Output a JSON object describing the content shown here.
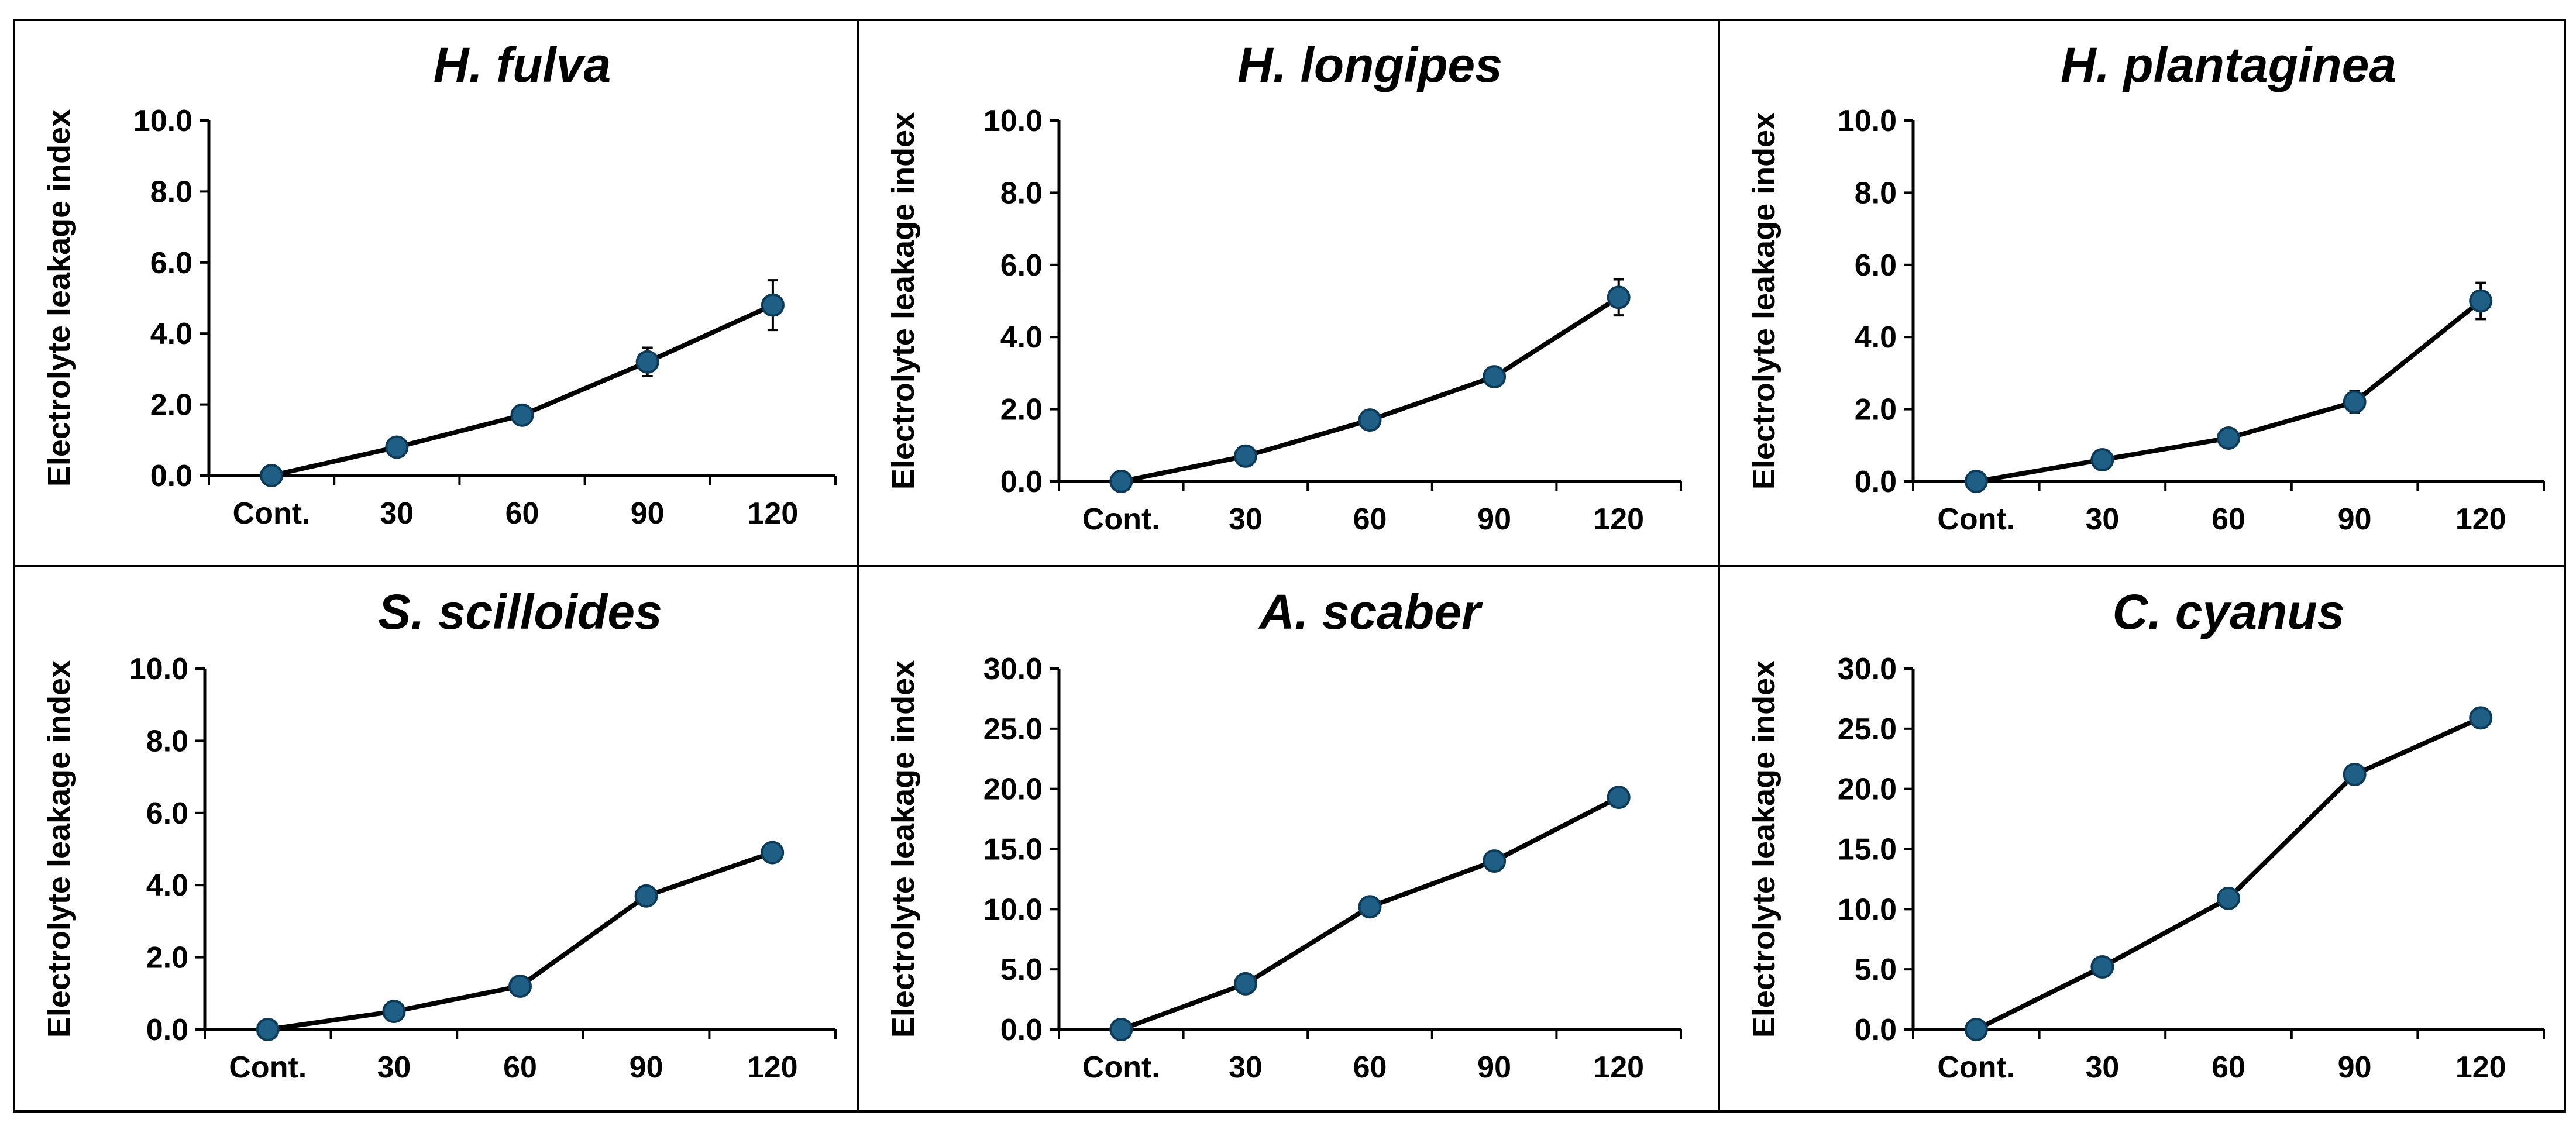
{
  "colors": {
    "marker": "#1f5f85",
    "marker_edge": "#0d3a56",
    "line": "#000000"
  },
  "chart_data": [
    {
      "type": "line",
      "title": "H. fulva",
      "ylabel": "Electrolyte leakage index",
      "xlabel": "",
      "categories": [
        "Cont.",
        "30",
        "60",
        "90",
        "120"
      ],
      "values": [
        0.0,
        0.8,
        1.7,
        3.2,
        4.8
      ],
      "errors": [
        0,
        0,
        0,
        0.4,
        0.7
      ],
      "ylim": [
        0,
        10
      ],
      "yticks": [
        "0.0",
        "2.0",
        "4.0",
        "6.0",
        "8.0",
        "10.0"
      ]
    },
    {
      "type": "line",
      "title": "H. longipes",
      "ylabel": "Electrolyte leakage index",
      "xlabel": "",
      "categories": [
        "Cont.",
        "30",
        "60",
        "90",
        "120"
      ],
      "values": [
        0.0,
        0.7,
        1.7,
        2.9,
        5.1
      ],
      "errors": [
        0,
        0,
        0,
        0,
        0.5
      ],
      "ylim": [
        0,
        10
      ],
      "yticks": [
        "0.0",
        "2.0",
        "4.0",
        "6.0",
        "8.0",
        "10.0"
      ]
    },
    {
      "type": "line",
      "title": "H. plantaginea",
      "ylabel": "Electrolyte leakage index",
      "xlabel": "",
      "categories": [
        "Cont.",
        "30",
        "60",
        "90",
        "120"
      ],
      "values": [
        0.0,
        0.6,
        1.2,
        2.2,
        5.0
      ],
      "errors": [
        0,
        0,
        0,
        0.3,
        0.5
      ],
      "ylim": [
        0,
        10
      ],
      "yticks": [
        "0.0",
        "2.0",
        "4.0",
        "6.0",
        "8.0",
        "10.0"
      ]
    },
    {
      "type": "line",
      "title": "S. scilloides",
      "ylabel": "Electrolyte leakage index",
      "xlabel": "",
      "categories": [
        "Cont.",
        "30",
        "60",
        "90",
        "120"
      ],
      "values": [
        0.0,
        0.5,
        1.2,
        3.7,
        4.9
      ],
      "errors": [
        0,
        0,
        0,
        0,
        0
      ],
      "ylim": [
        0,
        10
      ],
      "yticks": [
        "0.0",
        "2.0",
        "4.0",
        "6.0",
        "8.0",
        "10.0"
      ]
    },
    {
      "type": "line",
      "title": "A. scaber",
      "ylabel": "Electrolyte leakage index",
      "xlabel": "",
      "categories": [
        "Cont.",
        "30",
        "60",
        "90",
        "120"
      ],
      "values": [
        0.0,
        3.8,
        10.2,
        14.0,
        19.3
      ],
      "errors": [
        0,
        0,
        0,
        0,
        0
      ],
      "ylim": [
        0,
        30
      ],
      "yticks": [
        "0.0",
        "5.0",
        "10.0",
        "15.0",
        "20.0",
        "25.0",
        "30.0"
      ]
    },
    {
      "type": "line",
      "title": "C. cyanus",
      "ylabel": "Electrolyte leakage index",
      "xlabel": "",
      "categories": [
        "Cont.",
        "30",
        "60",
        "90",
        "120"
      ],
      "values": [
        0.0,
        5.2,
        10.9,
        21.2,
        25.9
      ],
      "errors": [
        0,
        0,
        0,
        0,
        0
      ],
      "ylim": [
        0,
        30
      ],
      "yticks": [
        "0.0",
        "5.0",
        "10.0",
        "15.0",
        "20.0",
        "25.0",
        "30.0"
      ]
    }
  ]
}
